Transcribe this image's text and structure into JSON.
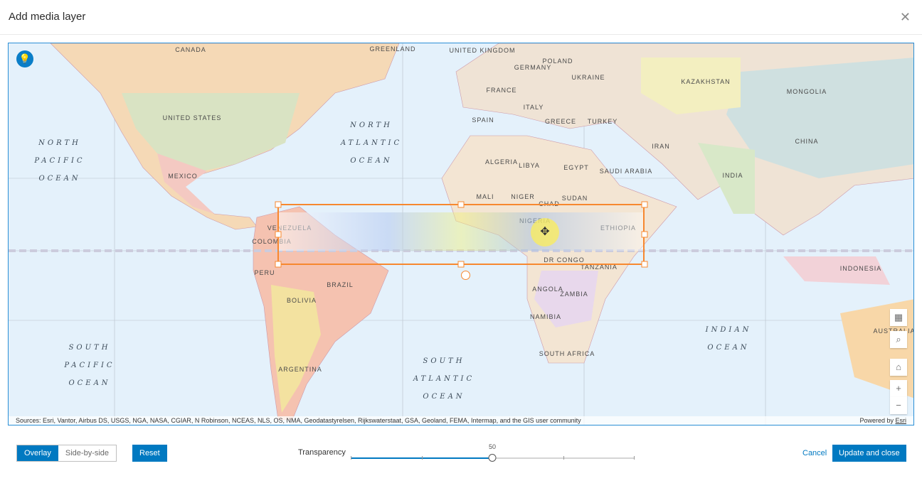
{
  "dialog": {
    "title": "Add media layer",
    "close_icon": "close-icon"
  },
  "map": {
    "tip_icon": "lightbulb-icon",
    "countries": [
      "CANADA",
      "UNITED STATES",
      "MEXICO",
      "GREENLAND",
      "UNITED KINGDOM",
      "GERMANY",
      "POLAND",
      "UKRAINE",
      "FRANCE",
      "SPAIN",
      "ITALY",
      "GREECE",
      "TURKEY",
      "KAZAKHSTAN",
      "MONGOLIA",
      "CHINA",
      "IRAN",
      "INDIA",
      "SAUDI ARABIA",
      "EGYPT",
      "LIBYA",
      "ALGERIA",
      "MALI",
      "NIGER",
      "CHAD",
      "SUDAN",
      "NIGERIA",
      "ETHIOPIA",
      "DR CONGO",
      "TANZANIA",
      "ANGOLA",
      "ZAMBIA",
      "NAMIBIA",
      "SOUTH AFRICA",
      "VENEZUELA",
      "COLOMBIA",
      "PERU",
      "BRAZIL",
      "BOLIVIA",
      "ARGENTINA",
      "INDONESIA",
      "AUSTRALIA"
    ],
    "oceans": [
      "NORTH\nPACIFIC\nOCEAN",
      "NORTH\nATLANTIC\nOCEAN",
      "SOUTH\nPACIFIC\nOCEAN",
      "SOUTH\nATLANTIC\nOCEAN",
      "INDIAN\nOCEAN"
    ],
    "controls": [
      {
        "name": "basemap-gallery-icon",
        "glyph": "▦"
      },
      {
        "name": "search-icon",
        "glyph": "⌕"
      },
      {
        "name": "home-icon",
        "glyph": "⌂"
      },
      {
        "name": "zoom-in-icon",
        "glyph": "+"
      },
      {
        "name": "zoom-out-icon",
        "glyph": "−"
      }
    ],
    "attribution": "Sources: Esri, Vantor, Airbus DS, USGS, NGA, NASA, CGIAR, N Robinson, NCEAS, NLS, OS, NMA, Geodatastyrelsen, Rijkswaterstaat, GSA, Geoland, FEMA, Intermap, and the GIS user community",
    "powered_by": "Powered by",
    "esri": "Esri",
    "selection_color": "#f7882f"
  },
  "footer": {
    "mode_overlay": "Overlay",
    "mode_side": "Side-by-side",
    "selected_mode": "Overlay",
    "reset": "Reset",
    "transparency_label": "Transparency",
    "transparency_value": 50,
    "transparency_value_text": "50",
    "cancel": "Cancel",
    "update": "Update and close",
    "accent": "#0079c1"
  }
}
